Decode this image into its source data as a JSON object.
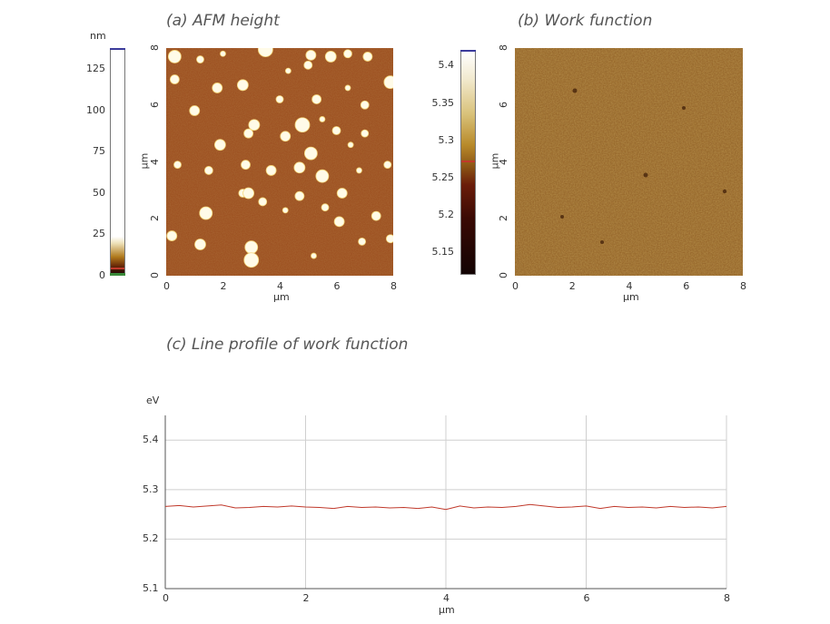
{
  "chart_data": [
    {
      "id": "a",
      "type": "heatmap",
      "title": "(a) AFM height",
      "xlabel": "µm",
      "ylabel": "µm",
      "xlim": [
        0,
        8
      ],
      "ylim": [
        0,
        8
      ],
      "xticks": [
        "0",
        "2",
        "4",
        "6",
        "8"
      ],
      "yticks": [
        "0",
        "2",
        "4",
        "6",
        "8"
      ],
      "colorbar": {
        "unit": "nm",
        "range": [
          0,
          137
        ],
        "ticks": [
          "0",
          "25",
          "50",
          "75",
          "100",
          "125"
        ],
        "tick_values": [
          0,
          25,
          50,
          75,
          100,
          125
        ]
      },
      "particles_um": [
        [
          2.0,
          7.8
        ],
        [
          3.5,
          7.95
        ],
        [
          6.4,
          7.8
        ],
        [
          7.1,
          7.7
        ],
        [
          5.1,
          7.75
        ],
        [
          5.8,
          7.7
        ],
        [
          0.3,
          7.7
        ],
        [
          4.3,
          7.2
        ],
        [
          1.2,
          7.6
        ],
        [
          5.0,
          7.4
        ],
        [
          0.3,
          6.9
        ],
        [
          1.8,
          6.6
        ],
        [
          2.7,
          6.7
        ],
        [
          7.9,
          6.8
        ],
        [
          6.4,
          6.6
        ],
        [
          4.0,
          6.2
        ],
        [
          7.0,
          6.0
        ],
        [
          5.3,
          6.2
        ],
        [
          1.0,
          5.8
        ],
        [
          3.1,
          5.3
        ],
        [
          4.8,
          5.3
        ],
        [
          5.5,
          5.5
        ],
        [
          7.0,
          5.0
        ],
        [
          6.0,
          5.1
        ],
        [
          2.9,
          5.0
        ],
        [
          4.2,
          4.9
        ],
        [
          1.9,
          4.6
        ],
        [
          5.1,
          4.3
        ],
        [
          6.5,
          4.6
        ],
        [
          0.4,
          3.9
        ],
        [
          1.5,
          3.7
        ],
        [
          2.8,
          3.9
        ],
        [
          3.7,
          3.7
        ],
        [
          4.7,
          3.8
        ],
        [
          5.5,
          3.5
        ],
        [
          6.8,
          3.7
        ],
        [
          7.8,
          3.9
        ],
        [
          2.7,
          2.9
        ],
        [
          4.7,
          2.8
        ],
        [
          6.2,
          2.9
        ],
        [
          2.9,
          2.9
        ],
        [
          1.4,
          2.2
        ],
        [
          4.2,
          2.3
        ],
        [
          5.6,
          2.4
        ],
        [
          3.4,
          2.6
        ],
        [
          7.4,
          2.1
        ],
        [
          0.2,
          1.4
        ],
        [
          1.2,
          1.1
        ],
        [
          3.0,
          1.0
        ],
        [
          5.2,
          0.7
        ],
        [
          6.9,
          1.2
        ],
        [
          7.9,
          1.3
        ],
        [
          3.0,
          0.55
        ],
        [
          6.1,
          1.9
        ]
      ]
    },
    {
      "id": "b",
      "type": "heatmap",
      "title": "(b) Work function",
      "xlabel": "µm",
      "ylabel": "µm",
      "xlim": [
        0,
        8
      ],
      "ylim": [
        0,
        8
      ],
      "xticks": [
        "0",
        "2",
        "4",
        "6",
        "8"
      ],
      "yticks": [
        "0",
        "2",
        "4",
        "6",
        "8"
      ],
      "colorbar": {
        "unit": "",
        "range": [
          5.12,
          5.42
        ],
        "ticks": [
          "5.15",
          "5.2",
          "5.25",
          "5.3",
          "5.35",
          "5.4"
        ],
        "tick_values": [
          5.15,
          5.2,
          5.25,
          5.3,
          5.35,
          5.4
        ],
        "marker": 5.27
      }
    },
    {
      "id": "c",
      "type": "line",
      "title": "(c) Line profile of work function",
      "xlabel": "µm",
      "ylabel": "eV",
      "xlim": [
        0,
        8
      ],
      "ylim": [
        5.1,
        5.45
      ],
      "xticks": [
        "0",
        "2",
        "4",
        "6",
        "8"
      ],
      "yticks": [
        "5.1",
        "5.2",
        "5.3",
        "5.4"
      ],
      "ytick_values": [
        5.1,
        5.2,
        5.3,
        5.4
      ],
      "grid": true,
      "series": [
        {
          "color": "#c0392b",
          "x": [
            0,
            0.2,
            0.4,
            0.6,
            0.8,
            1.0,
            1.2,
            1.4,
            1.6,
            1.8,
            2.0,
            2.2,
            2.4,
            2.6,
            2.8,
            3.0,
            3.2,
            3.4,
            3.6,
            3.8,
            4.0,
            4.2,
            4.4,
            4.6,
            4.8,
            5.0,
            5.2,
            5.4,
            5.6,
            5.8,
            6.0,
            6.2,
            6.4,
            6.6,
            6.8,
            7.0,
            7.2,
            7.4,
            7.6,
            7.8,
            8.0
          ],
          "y": [
            5.266,
            5.268,
            5.265,
            5.267,
            5.269,
            5.263,
            5.264,
            5.266,
            5.265,
            5.267,
            5.265,
            5.264,
            5.262,
            5.266,
            5.264,
            5.265,
            5.263,
            5.264,
            5.262,
            5.265,
            5.26,
            5.267,
            5.263,
            5.265,
            5.264,
            5.266,
            5.27,
            5.267,
            5.264,
            5.265,
            5.267,
            5.262,
            5.266,
            5.264,
            5.265,
            5.263,
            5.266,
            5.264,
            5.265,
            5.263,
            5.266
          ]
        }
      ]
    }
  ]
}
